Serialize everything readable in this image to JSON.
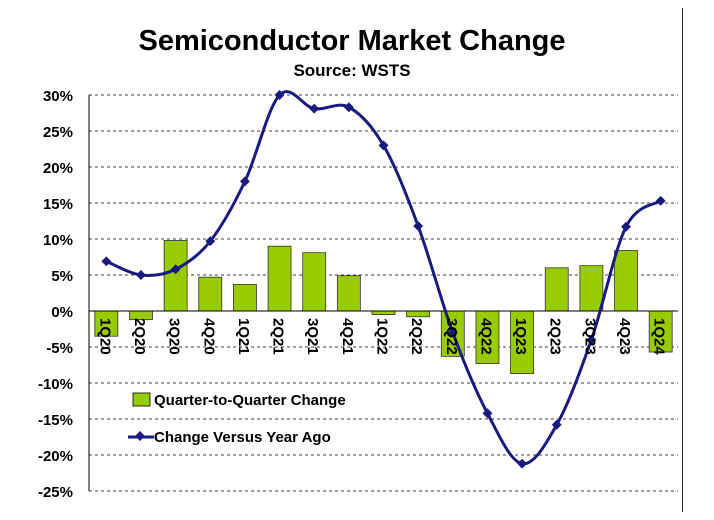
{
  "chart_data": {
    "type": "bar",
    "title": "Semiconductor Market Change",
    "subtitle": "Source: WSTS",
    "categories": [
      "1Q20",
      "2Q20",
      "3Q20",
      "4Q20",
      "1Q21",
      "2Q21",
      "3Q21",
      "4Q21",
      "1Q22",
      "2Q22",
      "3Q22",
      "4Q22",
      "1Q23",
      "2Q23",
      "3Q23",
      "4Q23",
      "1Q24"
    ],
    "ylim": [
      -25,
      30
    ],
    "yticks": [
      30,
      25,
      20,
      15,
      10,
      5,
      0,
      -5,
      -10,
      -15,
      -20,
      -25
    ],
    "ytick_labels": [
      "30%",
      "25%",
      "20%",
      "15%",
      "10%",
      "5%",
      "0%",
      "-5%",
      "-10%",
      "-15%",
      "-20%",
      "-25%"
    ],
    "grid": true,
    "legend_position": "bottom-left",
    "series": [
      {
        "name": "Quarter-to-Quarter Change",
        "kind": "bar",
        "color": "#99cc00",
        "values": [
          -3.5,
          -1.2,
          9.8,
          4.7,
          3.7,
          9.0,
          8.1,
          4.9,
          -0.5,
          -0.8,
          -6.3,
          -7.3,
          -8.7,
          6.0,
          6.3,
          8.4,
          -5.7
        ]
      },
      {
        "name": "Change Versus Year Ago",
        "kind": "line",
        "color": "#1a1a80",
        "values": [
          6.9,
          5.0,
          5.8,
          9.7,
          18.0,
          30.0,
          28.1,
          28.3,
          23.0,
          11.8,
          -3.0,
          -14.2,
          -21.2,
          -15.8,
          -4.0,
          11.7,
          15.3
        ]
      }
    ]
  }
}
